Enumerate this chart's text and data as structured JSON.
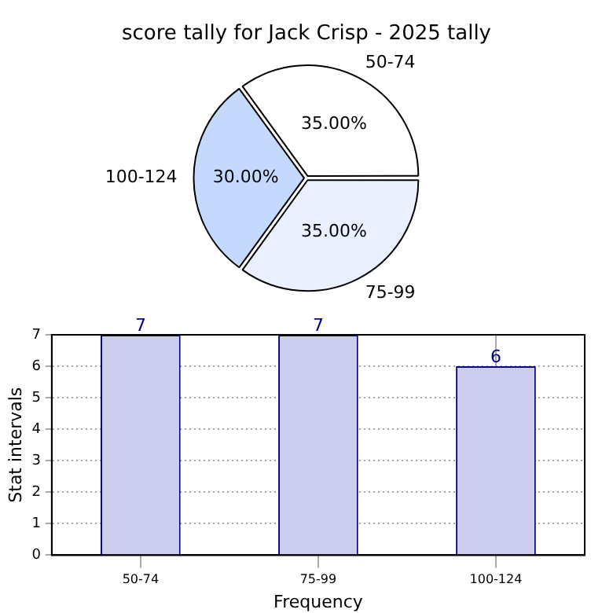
{
  "chart_data": [
    {
      "type": "pie",
      "title": "score tally for Jack Crisp - 2025 tally",
      "categories": [
        "50-74",
        "75-99",
        "100-124"
      ],
      "values": [
        35,
        35,
        30
      ],
      "colors": [
        "#ffffff",
        "#eaf0ff",
        "#c5d9ff"
      ],
      "value_labels": [
        "35.00%",
        "35.00%",
        "30.00%"
      ],
      "legend": false
    },
    {
      "type": "bar",
      "categories": [
        "50-74",
        "75-99",
        "100-124"
      ],
      "values": [
        7,
        7,
        6
      ],
      "color": "#ccccee",
      "xlabel": "Frequency",
      "ylabel": "Stat intervals",
      "ylim": [
        0,
        7
      ],
      "yticks": [
        0,
        1,
        2,
        3,
        4,
        5,
        6,
        7
      ],
      "grid": true,
      "data_labels": true,
      "legend": false
    }
  ]
}
